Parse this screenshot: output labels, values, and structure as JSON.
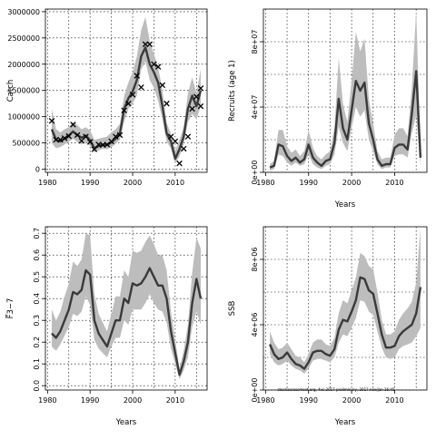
{
  "chart_data": [
    {
      "id": "catch",
      "type": "line",
      "title": "",
      "xlabel": "",
      "ylabel": "Catch",
      "xlim": [
        1979.5,
        2017.5
      ],
      "ylim": [
        -60000,
        3050000
      ],
      "xticks": [
        1980,
        1990,
        2000,
        2010
      ],
      "yticks": [
        0,
        500000,
        1000000,
        1500000,
        2000000,
        2500000,
        3000000
      ],
      "ytick_labels": [
        "0",
        "500000",
        "1000000",
        "1500000",
        "2000000",
        "2500000",
        "3000000"
      ],
      "ytick_rotated": false,
      "grid": true,
      "x": [
        1981,
        1982,
        1983,
        1984,
        1985,
        1986,
        1987,
        1988,
        1989,
        1990,
        1991,
        1992,
        1993,
        1994,
        1995,
        1996,
        1997,
        1998,
        1999,
        2000,
        2001,
        2002,
        2003,
        2004,
        2005,
        2006,
        2007,
        2008,
        2009,
        2010,
        2011,
        2012,
        2013,
        2014,
        2015,
        2016
      ],
      "mid": [
        760000,
        560000,
        530000,
        580000,
        640000,
        720000,
        650000,
        600000,
        640000,
        550000,
        400000,
        440000,
        470000,
        460000,
        510000,
        580000,
        680000,
        1150000,
        1350000,
        1480000,
        1700000,
        2150000,
        2320000,
        2000000,
        1850000,
        1650000,
        1200000,
        680000,
        530000,
        200000,
        380000,
        620000,
        1150000,
        1400000,
        1200000,
        1500000
      ],
      "lower": [
        500000,
        400000,
        420000,
        470000,
        520000,
        580000,
        520000,
        470000,
        520000,
        440000,
        320000,
        360000,
        390000,
        380000,
        420000,
        480000,
        560000,
        900000,
        1150000,
        1250000,
        1400000,
        1900000,
        2050000,
        1700000,
        1550000,
        1300000,
        950000,
        520000,
        400000,
        100000,
        250000,
        470000,
        900000,
        1050000,
        950000,
        1200000
      ],
      "upper": [
        1150000,
        760000,
        700000,
        760000,
        800000,
        900000,
        840000,
        760000,
        800000,
        740000,
        560000,
        580000,
        600000,
        620000,
        700000,
        760000,
        860000,
        1400000,
        1650000,
        1850000,
        2150000,
        2650000,
        2900000,
        2450000,
        2200000,
        1950000,
        1500000,
        880000,
        680000,
        350000,
        560000,
        800000,
        1450000,
        1750000,
        1450000,
        1900000
      ],
      "observed_x": [
        1981,
        1982,
        1983,
        1984,
        1985,
        1986,
        1987,
        1988,
        1989,
        1990,
        1991,
        1992,
        1993,
        1994,
        1995,
        1996,
        1997,
        1998,
        1999,
        2000,
        2001,
        2002,
        2003,
        2004,
        2005,
        2006,
        2007,
        2008,
        2009,
        2010,
        2011,
        2012,
        2013,
        2014,
        2015,
        2016
      ],
      "observed_y": [
        920000,
        560000,
        560000,
        590000,
        630000,
        850000,
        650000,
        540000,
        620000,
        520000,
        380000,
        470000,
        460000,
        470000,
        530000,
        620000,
        650000,
        1120000,
        1250000,
        1420000,
        1780000,
        1560000,
        2380000,
        2380000,
        2000000,
        1950000,
        1600000,
        1250000,
        620000,
        530000,
        110000,
        390000,
        620000,
        1150000,
        1380000,
        1200000
      ],
      "observed_x2": [
        2016
      ],
      "observed_y2": [
        1540000
      ]
    },
    {
      "id": "recruits",
      "type": "line",
      "title": "",
      "xlabel": "Years",
      "ylabel": "Recruits (age 1)",
      "xlim": [
        1979.5,
        2017.5
      ],
      "ylim": [
        0,
        100000000
      ],
      "xticks": [
        1980,
        1990,
        2000,
        2010
      ],
      "yticks": [
        0,
        40000000,
        80000000
      ],
      "ytick_labels": [
        "0e+00",
        "4e+07",
        "8e+07"
      ],
      "ytick_rotated": true,
      "grid": true,
      "x": [
        1981,
        1982,
        1983,
        1984,
        1985,
        1986,
        1987,
        1988,
        1989,
        1990,
        1991,
        1992,
        1993,
        1994,
        1995,
        1996,
        1997,
        1998,
        1999,
        2000,
        2001,
        2002,
        2003,
        2004,
        2005,
        2006,
        2007,
        2008,
        2009,
        2010,
        2011,
        2012,
        2013,
        2014,
        2015,
        2016
      ],
      "mid": [
        3000000,
        4000000,
        17000000,
        16000000,
        10000000,
        7000000,
        9000000,
        6000000,
        8000000,
        17000000,
        9000000,
        6000000,
        4000000,
        7000000,
        8000000,
        18000000,
        45000000,
        27000000,
        20000000,
        38000000,
        56000000,
        50000000,
        55000000,
        30000000,
        20000000,
        8000000,
        4000000,
        5000000,
        5000000,
        15000000,
        17000000,
        17000000,
        14000000,
        36000000,
        62000000,
        9000000
      ],
      "lower": [
        1000000,
        2000000,
        11000000,
        10000000,
        6000000,
        4000000,
        6000000,
        4000000,
        5000000,
        11000000,
        5000000,
        3000000,
        2000000,
        4000000,
        5000000,
        11000000,
        28000000,
        18000000,
        13000000,
        27000000,
        40000000,
        34000000,
        38000000,
        20000000,
        13000000,
        5000000,
        2000000,
        3000000,
        3000000,
        10000000,
        11000000,
        11000000,
        9000000,
        24000000,
        35000000,
        4000000
      ],
      "upper": [
        5000000,
        7000000,
        26000000,
        26000000,
        16000000,
        12000000,
        14000000,
        10000000,
        13000000,
        26000000,
        15000000,
        10000000,
        8000000,
        11000000,
        13000000,
        27000000,
        70000000,
        42000000,
        31000000,
        56000000,
        86000000,
        74000000,
        82000000,
        45000000,
        30000000,
        13000000,
        8000000,
        9000000,
        9000000,
        23000000,
        27000000,
        27000000,
        22000000,
        52000000,
        99000000,
        15000000
      ]
    },
    {
      "id": "fbar",
      "type": "line",
      "title": "",
      "xlabel": "Years",
      "ylabel": "F̅3−7",
      "xlim": [
        1979.5,
        2017.5
      ],
      "ylim": [
        -0.02,
        0.73
      ],
      "xticks": [
        1980,
        1990,
        2000,
        2010
      ],
      "yticks": [
        0,
        0.1,
        0.2,
        0.3,
        0.4,
        0.5,
        0.6,
        0.7
      ],
      "ytick_labels": [
        "0.0",
        "0.1",
        "0.2",
        "0.3",
        "0.4",
        "0.5",
        "0.6",
        "0.7"
      ],
      "ytick_rotated": true,
      "grid": true,
      "x": [
        1981,
        1982,
        1983,
        1984,
        1985,
        1986,
        1987,
        1988,
        1989,
        1990,
        1991,
        1992,
        1993,
        1994,
        1995,
        1996,
        1997,
        1998,
        1999,
        2000,
        2001,
        2002,
        2003,
        2004,
        2005,
        2006,
        2007,
        2008,
        2009,
        2010,
        2011,
        2012,
        2013,
        2014,
        2015,
        2016
      ],
      "mid": [
        0.24,
        0.22,
        0.25,
        0.3,
        0.35,
        0.43,
        0.42,
        0.44,
        0.53,
        0.51,
        0.3,
        0.24,
        0.21,
        0.18,
        0.24,
        0.3,
        0.3,
        0.4,
        0.38,
        0.47,
        0.46,
        0.47,
        0.5,
        0.54,
        0.5,
        0.46,
        0.46,
        0.4,
        0.25,
        0.15,
        0.05,
        0.11,
        0.2,
        0.38,
        0.49,
        0.4
      ],
      "lower": [
        0.18,
        0.16,
        0.19,
        0.23,
        0.27,
        0.33,
        0.32,
        0.34,
        0.41,
        0.37,
        0.21,
        0.17,
        0.15,
        0.13,
        0.18,
        0.22,
        0.22,
        0.3,
        0.28,
        0.35,
        0.35,
        0.35,
        0.38,
        0.42,
        0.38,
        0.35,
        0.34,
        0.29,
        0.17,
        0.1,
        0.03,
        0.07,
        0.13,
        0.27,
        0.34,
        0.28
      ],
      "upper": [
        0.35,
        0.3,
        0.34,
        0.41,
        0.47,
        0.57,
        0.55,
        0.58,
        0.7,
        0.69,
        0.42,
        0.33,
        0.29,
        0.25,
        0.33,
        0.41,
        0.41,
        0.53,
        0.5,
        0.62,
        0.61,
        0.62,
        0.66,
        0.69,
        0.65,
        0.6,
        0.6,
        0.53,
        0.34,
        0.21,
        0.08,
        0.16,
        0.28,
        0.52,
        0.68,
        0.63
      ]
    },
    {
      "id": "ssb",
      "type": "line",
      "title": "",
      "xlabel": "Years",
      "ylabel": "SSB",
      "xlim": [
        1979.5,
        2017.5
      ],
      "ylim": [
        0,
        10000000
      ],
      "xticks": [
        1980,
        1990,
        2000,
        2010
      ],
      "yticks": [
        0,
        4000000,
        8000000
      ],
      "ytick_labels": [
        "0e+00",
        "4e+06",
        "8e+06"
      ],
      "ytick_rotated": true,
      "grid": true,
      "x": [
        1981,
        1982,
        1983,
        1984,
        1985,
        1986,
        1987,
        1988,
        1989,
        1990,
        1991,
        1992,
        1993,
        1994,
        1995,
        1996,
        1997,
        1998,
        1999,
        2000,
        2001,
        2002,
        2003,
        2004,
        2005,
        2006,
        2007,
        2008,
        2009,
        2010,
        2011,
        2012,
        2013,
        2014,
        2015,
        2016
      ],
      "mid": [
        2800000,
        2200000,
        1900000,
        2000000,
        2300000,
        1900000,
        1600000,
        1500000,
        1300000,
        1700000,
        2300000,
        2400000,
        2400000,
        2200000,
        2100000,
        2500000,
        3700000,
        4300000,
        4200000,
        4800000,
        5500000,
        6900000,
        6800000,
        6100000,
        5900000,
        4700000,
        3400000,
        2600000,
        2600000,
        2700000,
        3300000,
        3600000,
        3800000,
        4000000,
        4700000,
        6300000
      ],
      "lower": [
        2200000,
        1700000,
        1500000,
        1600000,
        1800000,
        1500000,
        1300000,
        1200000,
        1000000,
        1300000,
        1800000,
        1900000,
        1900000,
        1800000,
        1700000,
        2000000,
        2900000,
        3400000,
        3300000,
        3800000,
        4400000,
        5500000,
        5400000,
        4800000,
        4600000,
        3600000,
        2600000,
        2000000,
        1900000,
        2000000,
        2500000,
        2700000,
        2800000,
        2900000,
        3300000,
        3800000
      ],
      "upper": [
        3600000,
        2900000,
        2500000,
        2600000,
        2900000,
        2500000,
        2100000,
        2000000,
        1700000,
        2200000,
        2900000,
        3100000,
        3100000,
        2800000,
        2700000,
        3200000,
        4700000,
        5500000,
        5300000,
        6100000,
        6900000,
        8400000,
        8200000,
        7600000,
        7400000,
        6000000,
        4300000,
        3400000,
        3400000,
        3600000,
        4300000,
        4700000,
        5000000,
        5400000,
        6600000,
        9900000
      ]
    }
  ],
  "footnote": "stockassessment.org, 4vs-2017-preliminary, 2017 nov/jan 16:45",
  "colors": {
    "band": "#bdbdbd",
    "line": "#3a3a3a",
    "marker": "#000000",
    "frame": "#000000",
    "grid": "#000000"
  }
}
